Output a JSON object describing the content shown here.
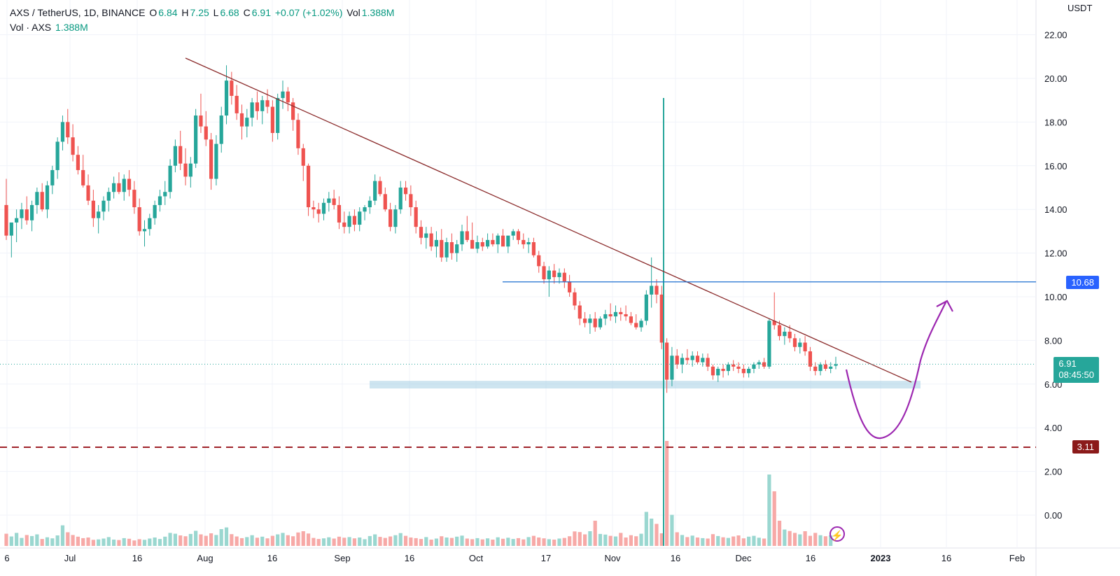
{
  "header": {
    "symbol": "AXS / TetherUS, 1D, BINANCE",
    "o_label": "O",
    "o_value": "6.84",
    "h_label": "H",
    "h_value": "7.25",
    "l_label": "L",
    "l_value": "6.68",
    "c_label": "C",
    "c_value": "6.91",
    "change": "+0.07 (+1.02%)",
    "vol_label": "Vol",
    "vol_value": "1.388M",
    "vol_line_label": "Vol · AXS",
    "vol_line_value": "1.388M"
  },
  "price_axis_unit": "USDT",
  "tags": {
    "resistance": "10.68",
    "current_price": "6.91",
    "countdown": "08:45:50",
    "support_dashed": "3.11"
  },
  "colors": {
    "up": "#26a69a",
    "down": "#ef5350",
    "trendline": "#8b2c2c",
    "horizontal": "#1e6fcf",
    "dashed": "#a0232a",
    "zone": "#a6cfe3",
    "projection": "#9c27b0"
  },
  "chart_data": {
    "type": "candlestick",
    "y_ticks": [
      "22.00",
      "20.00",
      "18.00",
      "16.00",
      "14.00",
      "12.00",
      "10.00",
      "8.00",
      "6.00",
      "4.00",
      "2.00",
      "0.00"
    ],
    "y_range": [
      -1.2,
      23.4
    ],
    "x_ticks": [
      "6",
      "Jul",
      "16",
      "Aug",
      "16",
      "Sep",
      "16",
      "Oct",
      "17",
      "Nov",
      "16",
      "Dec",
      "16",
      "2023",
      "16",
      "Feb"
    ],
    "candles": [
      [
        14.2,
        15.4,
        12.6,
        12.8
      ],
      [
        12.8,
        13.2,
        11.8,
        13.4
      ],
      [
        13.4,
        14.0,
        12.5,
        13.6
      ],
      [
        13.6,
        14.3,
        13.1,
        14.0
      ],
      [
        14.0,
        14.6,
        13.3,
        13.5
      ],
      [
        13.5,
        14.4,
        13.0,
        14.2
      ],
      [
        14.2,
        15.0,
        13.8,
        14.8
      ],
      [
        14.8,
        15.2,
        13.9,
        14.0
      ],
      [
        14.0,
        15.3,
        13.6,
        15.1
      ],
      [
        15.1,
        16.0,
        14.7,
        15.8
      ],
      [
        15.8,
        17.3,
        15.4,
        17.1
      ],
      [
        17.1,
        18.3,
        16.7,
        18.0
      ],
      [
        18.0,
        18.6,
        17.0,
        17.3
      ],
      [
        17.3,
        17.9,
        16.2,
        16.5
      ],
      [
        16.5,
        16.9,
        15.6,
        15.8
      ],
      [
        15.8,
        16.5,
        15.0,
        15.1
      ],
      [
        15.1,
        15.6,
        14.2,
        14.4
      ],
      [
        14.4,
        14.9,
        13.2,
        13.6
      ],
      [
        13.6,
        14.2,
        12.9,
        13.9
      ],
      [
        13.9,
        14.6,
        13.5,
        14.4
      ],
      [
        14.4,
        15.0,
        13.9,
        14.8
      ],
      [
        14.8,
        15.5,
        14.5,
        15.2
      ],
      [
        15.2,
        15.7,
        14.7,
        14.8
      ],
      [
        14.8,
        15.6,
        14.4,
        15.4
      ],
      [
        15.4,
        15.8,
        14.6,
        14.9
      ],
      [
        14.9,
        15.3,
        13.8,
        14.1
      ],
      [
        14.1,
        14.5,
        12.8,
        13.0
      ],
      [
        13.0,
        13.5,
        12.3,
        13.1
      ],
      [
        13.1,
        13.8,
        12.8,
        13.6
      ],
      [
        13.6,
        14.4,
        13.3,
        14.2
      ],
      [
        14.2,
        14.9,
        13.9,
        14.6
      ],
      [
        14.6,
        15.3,
        14.2,
        14.8
      ],
      [
        14.8,
        16.3,
        14.5,
        16.0
      ],
      [
        16.0,
        17.2,
        15.7,
        16.9
      ],
      [
        16.9,
        17.6,
        15.8,
        16.1
      ],
      [
        16.1,
        16.8,
        15.1,
        15.5
      ],
      [
        15.5,
        16.4,
        15.0,
        16.1
      ],
      [
        16.1,
        18.6,
        15.9,
        18.3
      ],
      [
        18.3,
        19.3,
        17.5,
        17.8
      ],
      [
        17.8,
        18.5,
        16.9,
        17.2
      ],
      [
        17.2,
        17.5,
        14.9,
        15.4
      ],
      [
        15.4,
        17.4,
        15.1,
        17.0
      ],
      [
        17.0,
        18.7,
        16.6,
        18.3
      ],
      [
        18.3,
        20.6,
        17.9,
        19.9
      ],
      [
        19.9,
        20.3,
        18.8,
        19.2
      ],
      [
        19.2,
        19.7,
        18.1,
        18.4
      ],
      [
        18.4,
        18.8,
        17.2,
        17.8
      ],
      [
        17.8,
        18.6,
        17.3,
        18.2
      ],
      [
        18.2,
        19.1,
        17.8,
        18.9
      ],
      [
        18.9,
        19.4,
        18.1,
        18.5
      ],
      [
        18.5,
        19.2,
        17.9,
        19.0
      ],
      [
        19.0,
        19.5,
        18.4,
        18.7
      ],
      [
        18.7,
        19.0,
        17.1,
        17.5
      ],
      [
        17.5,
        19.3,
        17.2,
        19.1
      ],
      [
        19.1,
        19.9,
        18.6,
        19.4
      ],
      [
        19.4,
        19.6,
        18.5,
        18.9
      ],
      [
        18.9,
        19.1,
        17.6,
        18.1
      ],
      [
        18.1,
        18.4,
        16.5,
        16.8
      ],
      [
        16.8,
        17.0,
        15.3,
        16.0
      ],
      [
        16.0,
        16.1,
        13.7,
        14.1
      ],
      [
        14.1,
        14.4,
        13.6,
        14.0
      ],
      [
        14.0,
        14.3,
        13.4,
        13.8
      ],
      [
        13.8,
        14.5,
        13.5,
        14.3
      ],
      [
        14.3,
        14.8,
        13.9,
        14.5
      ],
      [
        14.5,
        14.9,
        14.0,
        14.2
      ],
      [
        14.2,
        14.6,
        13.1,
        13.4
      ],
      [
        13.4,
        13.9,
        12.9,
        13.2
      ],
      [
        13.2,
        13.9,
        12.9,
        13.7
      ],
      [
        13.7,
        14.0,
        13.0,
        13.3
      ],
      [
        13.3,
        14.1,
        13.0,
        13.9
      ],
      [
        13.9,
        14.2,
        13.5,
        14.1
      ],
      [
        14.1,
        14.6,
        13.8,
        14.4
      ],
      [
        14.4,
        15.6,
        14.2,
        15.3
      ],
      [
        15.3,
        15.5,
        14.6,
        14.7
      ],
      [
        14.7,
        15.0,
        13.9,
        14.0
      ],
      [
        14.0,
        14.3,
        13.0,
        13.2
      ],
      [
        13.2,
        14.2,
        12.9,
        14.0
      ],
      [
        14.0,
        15.3,
        13.8,
        15.0
      ],
      [
        15.0,
        15.3,
        14.4,
        14.7
      ],
      [
        14.7,
        15.1,
        13.7,
        14.1
      ],
      [
        14.1,
        14.4,
        12.9,
        13.2
      ],
      [
        13.2,
        13.5,
        12.4,
        12.7
      ],
      [
        12.7,
        13.2,
        12.2,
        12.9
      ],
      [
        12.9,
        13.2,
        12.1,
        12.3
      ],
      [
        12.3,
        13.0,
        11.8,
        12.6
      ],
      [
        12.6,
        13.1,
        11.6,
        11.8
      ],
      [
        11.8,
        12.7,
        11.6,
        12.5
      ],
      [
        12.5,
        12.9,
        11.7,
        12.0
      ],
      [
        12.0,
        12.6,
        11.6,
        12.4
      ],
      [
        12.4,
        13.3,
        12.1,
        13.0
      ],
      [
        13.0,
        13.7,
        12.5,
        12.6
      ],
      [
        12.6,
        13.4,
        12.3,
        12.2
      ],
      [
        12.2,
        12.8,
        12.0,
        12.5
      ],
      [
        12.5,
        12.7,
        12.1,
        12.3
      ],
      [
        12.3,
        12.9,
        12.2,
        12.6
      ],
      [
        12.6,
        12.9,
        12.3,
        12.4
      ],
      [
        12.4,
        12.9,
        12.0,
        12.8
      ],
      [
        12.8,
        13.1,
        12.5,
        12.3
      ],
      [
        12.3,
        12.6,
        12.0,
        12.8
      ],
      [
        12.8,
        13.1,
        12.6,
        13.0
      ],
      [
        13.0,
        13.1,
        12.4,
        12.6
      ],
      [
        12.6,
        12.9,
        12.2,
        12.4
      ],
      [
        12.4,
        12.7,
        12.0,
        12.5
      ],
      [
        12.5,
        12.7,
        11.8,
        11.9
      ],
      [
        11.9,
        12.1,
        11.1,
        11.4
      ],
      [
        11.4,
        11.6,
        10.6,
        10.8
      ],
      [
        10.8,
        11.4,
        10.0,
        11.2
      ],
      [
        11.2,
        11.5,
        10.6,
        10.9
      ],
      [
        10.9,
        11.3,
        10.6,
        11.1
      ],
      [
        11.1,
        11.3,
        10.4,
        10.7
      ],
      [
        10.7,
        11.0,
        10.0,
        10.2
      ],
      [
        10.2,
        10.4,
        9.4,
        9.6
      ],
      [
        9.6,
        9.8,
        8.7,
        9.0
      ],
      [
        9.0,
        9.3,
        8.6,
        8.8
      ],
      [
        8.8,
        9.2,
        8.3,
        9.0
      ],
      [
        9.0,
        9.3,
        8.4,
        8.6
      ],
      [
        8.6,
        9.1,
        8.5,
        9.0
      ],
      [
        9.0,
        9.4,
        8.7,
        9.2
      ],
      [
        9.2,
        9.7,
        8.9,
        9.1
      ],
      [
        9.1,
        9.6,
        8.8,
        9.3
      ],
      [
        9.3,
        9.5,
        8.9,
        9.2
      ],
      [
        9.2,
        9.6,
        8.9,
        9.1
      ],
      [
        9.1,
        9.3,
        8.7,
        8.8
      ],
      [
        8.8,
        9.2,
        8.5,
        8.6
      ],
      [
        8.6,
        9.0,
        8.4,
        8.9
      ],
      [
        8.9,
        10.3,
        8.7,
        10.1
      ],
      [
        10.1,
        11.8,
        9.5,
        10.5
      ],
      [
        10.5,
        10.8,
        9.7,
        10.1
      ],
      [
        10.1,
        10.5,
        7.6,
        7.9
      ],
      [
        7.9,
        8.1,
        5.6,
        6.2
      ],
      [
        6.2,
        7.7,
        5.9,
        7.3
      ],
      [
        7.3,
        7.6,
        6.7,
        6.9
      ],
      [
        6.9,
        7.4,
        6.5,
        7.2
      ],
      [
        7.2,
        7.6,
        6.9,
        7.1
      ],
      [
        7.1,
        7.5,
        6.8,
        7.3
      ],
      [
        7.3,
        7.5,
        6.9,
        7.0
      ],
      [
        7.0,
        7.4,
        6.8,
        7.2
      ],
      [
        7.2,
        7.4,
        6.6,
        6.8
      ],
      [
        6.8,
        6.9,
        6.2,
        6.4
      ],
      [
        6.4,
        6.8,
        6.1,
        6.7
      ],
      [
        6.7,
        6.9,
        6.3,
        6.6
      ],
      [
        6.6,
        7.0,
        6.4,
        6.9
      ],
      [
        6.9,
        7.1,
        6.6,
        6.8
      ],
      [
        6.8,
        7.0,
        6.5,
        6.7
      ],
      [
        6.7,
        6.9,
        6.3,
        6.5
      ],
      [
        6.5,
        6.8,
        6.3,
        6.7
      ],
      [
        6.7,
        7.0,
        6.5,
        6.9
      ],
      [
        6.9,
        7.1,
        6.7,
        7.0
      ],
      [
        7.0,
        7.2,
        6.7,
        6.8
      ],
      [
        6.8,
        9.0,
        6.7,
        8.9
      ],
      [
        8.9,
        10.2,
        8.5,
        8.7
      ],
      [
        8.7,
        8.9,
        8.0,
        8.2
      ],
      [
        8.2,
        8.6,
        7.8,
        8.4
      ],
      [
        8.4,
        8.7,
        7.9,
        8.1
      ],
      [
        8.1,
        8.3,
        7.5,
        7.7
      ],
      [
        7.7,
        8.1,
        7.4,
        7.9
      ],
      [
        7.9,
        8.2,
        7.3,
        7.5
      ],
      [
        7.5,
        7.7,
        6.6,
        6.8
      ],
      [
        6.8,
        7.0,
        6.4,
        6.6
      ],
      [
        6.6,
        7.0,
        6.4,
        6.9
      ],
      [
        6.9,
        7.1,
        6.6,
        6.7
      ],
      [
        6.7,
        7.0,
        6.5,
        6.8
      ],
      [
        6.84,
        7.25,
        6.68,
        6.91
      ]
    ],
    "volume": [
      0.58,
      0.45,
      0.62,
      0.38,
      0.52,
      0.47,
      0.55,
      0.33,
      0.41,
      0.36,
      0.5,
      0.98,
      0.65,
      0.52,
      0.44,
      0.37,
      0.4,
      0.29,
      0.31,
      0.35,
      0.42,
      0.3,
      0.28,
      0.37,
      0.34,
      0.26,
      0.32,
      0.29,
      0.35,
      0.4,
      0.33,
      0.44,
      0.62,
      0.58,
      0.5,
      0.46,
      0.57,
      0.72,
      0.55,
      0.48,
      0.6,
      0.52,
      0.8,
      0.88,
      0.56,
      0.45,
      0.37,
      0.42,
      0.51,
      0.39,
      0.44,
      0.36,
      0.48,
      0.55,
      0.62,
      0.51,
      0.46,
      0.64,
      0.7,
      0.59,
      0.38,
      0.33,
      0.36,
      0.41,
      0.35,
      0.44,
      0.39,
      0.42,
      0.36,
      0.4,
      0.32,
      0.47,
      0.55,
      0.43,
      0.38,
      0.45,
      0.51,
      0.61,
      0.48,
      0.4,
      0.37,
      0.33,
      0.42,
      0.3,
      0.35,
      0.46,
      0.4,
      0.38,
      0.44,
      0.49,
      0.35,
      0.32,
      0.37,
      0.31,
      0.36,
      0.3,
      0.41,
      0.34,
      0.39,
      0.33,
      0.37,
      0.31,
      0.42,
      0.48,
      0.4,
      0.36,
      0.32,
      0.3,
      0.35,
      0.38,
      0.46,
      0.69,
      0.66,
      0.55,
      0.7,
      1.2,
      0.57,
      0.54,
      0.48,
      0.45,
      0.62,
      0.4,
      0.51,
      0.46,
      0.58,
      1.62,
      1.3,
      1.05,
      0.6,
      5.0,
      1.48,
      0.65,
      0.52,
      0.42,
      0.49,
      0.4,
      0.37,
      0.35,
      0.56,
      0.47,
      0.41,
      0.38,
      0.45,
      0.5,
      0.36,
      0.44,
      0.48,
      0.39,
      0.35,
      3.4,
      2.6,
      1.2,
      0.78,
      0.71,
      0.62,
      0.55,
      0.7,
      0.48,
      0.62,
      0.51,
      0.46,
      0.5
    ]
  }
}
